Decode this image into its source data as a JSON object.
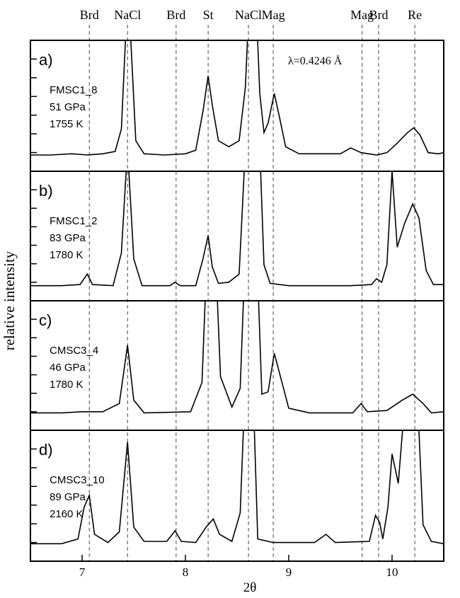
{
  "chart_data": {
    "type": "line",
    "xlabel": "2θ",
    "ylabel": "relative intensity",
    "xlim": [
      6.5,
      10.5
    ],
    "x_ticks": [
      7,
      8,
      9,
      10
    ],
    "wavelength_label": "λ=0.4246 Å",
    "reference_lines": [
      {
        "label": "Brd",
        "x": 7.07
      },
      {
        "label": "NaCl",
        "x": 7.44
      },
      {
        "label": "Brd",
        "x": 7.91
      },
      {
        "label": "St",
        "x": 8.22
      },
      {
        "label": "NaCl",
        "x": 8.61
      },
      {
        "label": "Mag",
        "x": 8.85
      },
      {
        "label": "Mag",
        "x": 9.71
      },
      {
        "label": "Brd",
        "x": 9.87
      },
      {
        "label": "Re",
        "x": 10.22
      }
    ],
    "panels": [
      {
        "tag": "a)",
        "sample": "FMSC1_8",
        "pressure": "51 GPa",
        "temperature": "1755 K",
        "points": [
          [
            6.5,
            0.03
          ],
          [
            6.7,
            0.03
          ],
          [
            6.9,
            0.04
          ],
          [
            7.05,
            0.03
          ],
          [
            7.2,
            0.04
          ],
          [
            7.32,
            0.06
          ],
          [
            7.38,
            0.25
          ],
          [
            7.43,
            1.2
          ],
          [
            7.46,
            1.2
          ],
          [
            7.52,
            0.15
          ],
          [
            7.6,
            0.04
          ],
          [
            7.8,
            0.03
          ],
          [
            8.0,
            0.04
          ],
          [
            8.1,
            0.07
          ],
          [
            8.17,
            0.4
          ],
          [
            8.22,
            0.7
          ],
          [
            8.26,
            0.45
          ],
          [
            8.32,
            0.15
          ],
          [
            8.42,
            0.1
          ],
          [
            8.52,
            0.15
          ],
          [
            8.58,
            0.6
          ],
          [
            8.61,
            1.2
          ],
          [
            8.69,
            1.2
          ],
          [
            8.72,
            0.55
          ],
          [
            8.76,
            0.22
          ],
          [
            8.8,
            0.3
          ],
          [
            8.86,
            0.55
          ],
          [
            8.91,
            0.35
          ],
          [
            8.97,
            0.1
          ],
          [
            9.1,
            0.04
          ],
          [
            9.5,
            0.04
          ],
          [
            9.6,
            0.09
          ],
          [
            9.7,
            0.05
          ],
          [
            9.85,
            0.03
          ],
          [
            9.95,
            0.05
          ],
          [
            10.05,
            0.13
          ],
          [
            10.15,
            0.22
          ],
          [
            10.21,
            0.26
          ],
          [
            10.27,
            0.2
          ],
          [
            10.35,
            0.05
          ],
          [
            10.45,
            0.04
          ],
          [
            10.5,
            0.05
          ]
        ]
      },
      {
        "tag": "b)",
        "sample": "FMSC1_2",
        "pressure": "83 GPa",
        "temperature": "1780 K",
        "points": [
          [
            6.5,
            0.02
          ],
          [
            6.8,
            0.02
          ],
          [
            6.98,
            0.03
          ],
          [
            7.05,
            0.12
          ],
          [
            7.1,
            0.03
          ],
          [
            7.3,
            0.02
          ],
          [
            7.38,
            0.3
          ],
          [
            7.44,
            1.2
          ],
          [
            7.5,
            0.25
          ],
          [
            7.58,
            0.02
          ],
          [
            7.85,
            0.02
          ],
          [
            7.9,
            0.05
          ],
          [
            7.95,
            0.02
          ],
          [
            8.1,
            0.02
          ],
          [
            8.17,
            0.25
          ],
          [
            8.22,
            0.45
          ],
          [
            8.26,
            0.18
          ],
          [
            8.32,
            0.04
          ],
          [
            8.42,
            0.05
          ],
          [
            8.52,
            0.12
          ],
          [
            8.58,
            1.2
          ],
          [
            8.72,
            1.2
          ],
          [
            8.76,
            0.2
          ],
          [
            8.82,
            0.04
          ],
          [
            9.0,
            0.02
          ],
          [
            9.6,
            0.02
          ],
          [
            9.8,
            0.03
          ],
          [
            9.85,
            0.08
          ],
          [
            9.9,
            0.05
          ],
          [
            9.95,
            0.2
          ],
          [
            10.0,
            1.0
          ],
          [
            10.05,
            0.35
          ],
          [
            10.12,
            0.55
          ],
          [
            10.2,
            0.72
          ],
          [
            10.26,
            0.6
          ],
          [
            10.33,
            0.15
          ],
          [
            10.4,
            0.03
          ],
          [
            10.5,
            0.03
          ]
        ]
      },
      {
        "tag": "c)",
        "sample": "CMSC3_4",
        "pressure": "46 GPa",
        "temperature": "1780 K",
        "points": [
          [
            6.5,
            0.04
          ],
          [
            6.8,
            0.04
          ],
          [
            7.0,
            0.05
          ],
          [
            7.2,
            0.05
          ],
          [
            7.36,
            0.12
          ],
          [
            7.44,
            0.62
          ],
          [
            7.5,
            0.15
          ],
          [
            7.6,
            0.04
          ],
          [
            8.05,
            0.05
          ],
          [
            8.16,
            0.3
          ],
          [
            8.2,
            1.2
          ],
          [
            8.3,
            1.2
          ],
          [
            8.34,
            0.35
          ],
          [
            8.45,
            0.09
          ],
          [
            8.53,
            0.25
          ],
          [
            8.57,
            1.2
          ],
          [
            8.7,
            1.2
          ],
          [
            8.74,
            0.2
          ],
          [
            8.8,
            0.22
          ],
          [
            8.86,
            0.55
          ],
          [
            8.92,
            0.35
          ],
          [
            9.0,
            0.08
          ],
          [
            9.2,
            0.04
          ],
          [
            9.62,
            0.04
          ],
          [
            9.7,
            0.12
          ],
          [
            9.76,
            0.05
          ],
          [
            9.95,
            0.06
          ],
          [
            10.1,
            0.15
          ],
          [
            10.2,
            0.2
          ],
          [
            10.3,
            0.12
          ],
          [
            10.38,
            0.04
          ],
          [
            10.5,
            0.05
          ]
        ]
      },
      {
        "tag": "d)",
        "sample": "CMSC3_10",
        "pressure": "89 GPa",
        "temperature": "2160 K",
        "points": [
          [
            6.5,
            0.04
          ],
          [
            6.8,
            0.04
          ],
          [
            6.96,
            0.08
          ],
          [
            7.02,
            0.35
          ],
          [
            7.07,
            0.45
          ],
          [
            7.12,
            0.12
          ],
          [
            7.25,
            0.05
          ],
          [
            7.36,
            0.14
          ],
          [
            7.44,
            0.9
          ],
          [
            7.5,
            0.18
          ],
          [
            7.6,
            0.06
          ],
          [
            7.82,
            0.06
          ],
          [
            7.9,
            0.15
          ],
          [
            7.96,
            0.06
          ],
          [
            8.1,
            0.05
          ],
          [
            8.2,
            0.18
          ],
          [
            8.27,
            0.25
          ],
          [
            8.33,
            0.12
          ],
          [
            8.45,
            0.06
          ],
          [
            8.53,
            0.3
          ],
          [
            8.57,
            1.2
          ],
          [
            8.66,
            1.2
          ],
          [
            8.7,
            0.08
          ],
          [
            8.85,
            0.05
          ],
          [
            9.25,
            0.05
          ],
          [
            9.36,
            0.12
          ],
          [
            9.45,
            0.05
          ],
          [
            9.78,
            0.06
          ],
          [
            9.84,
            0.28
          ],
          [
            9.88,
            0.22
          ],
          [
            9.91,
            0.08
          ],
          [
            9.96,
            0.35
          ],
          [
            10.0,
            0.8
          ],
          [
            10.06,
            0.55
          ],
          [
            10.12,
            1.2
          ],
          [
            10.25,
            1.2
          ],
          [
            10.3,
            0.2
          ],
          [
            10.38,
            0.06
          ],
          [
            10.5,
            0.04
          ]
        ]
      }
    ]
  }
}
